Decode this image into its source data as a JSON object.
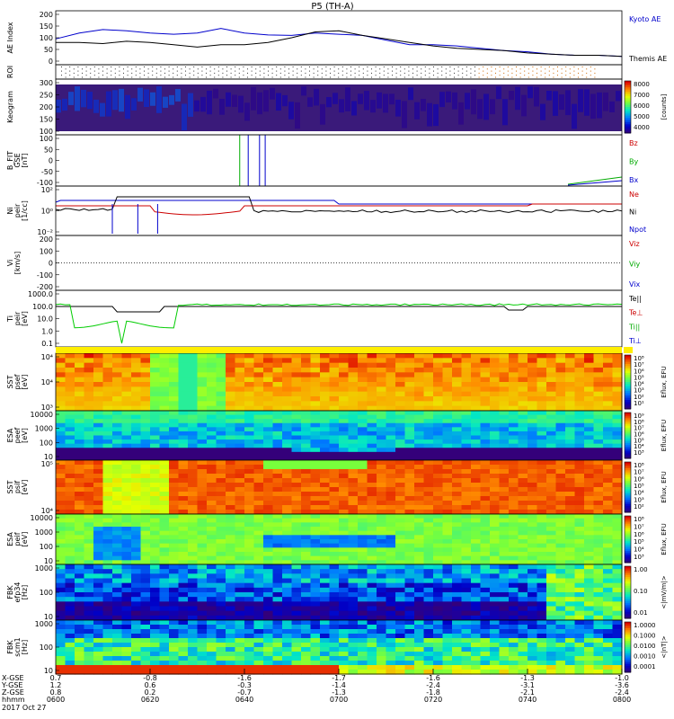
{
  "title": "P5 (TH-A)",
  "date": "2017 Oct 27",
  "chart_data": [
    {
      "id": "ae",
      "type": "line",
      "ylabel": "AE Index",
      "yticks": [
        "200",
        "150",
        "100",
        "50",
        "0"
      ],
      "legend": [
        {
          "name": "Kyoto AE",
          "color": "#0000cc"
        },
        {
          "name": "Themis AE",
          "color": "#000000"
        }
      ],
      "series": [
        {
          "name": "Kyoto AE",
          "color": "#0000cc",
          "t": [
            0,
            5,
            10,
            15,
            20,
            25,
            30,
            35,
            40,
            45,
            50,
            55,
            60,
            65,
            70,
            75,
            80,
            85,
            90,
            95,
            100,
            105,
            110,
            115,
            120
          ],
          "v": [
            95,
            120,
            135,
            130,
            120,
            115,
            120,
            140,
            120,
            112,
            110,
            120,
            115,
            110,
            90,
            70,
            70,
            65,
            55,
            45,
            40,
            30,
            25,
            25,
            20
          ]
        },
        {
          "name": "Themis AE",
          "color": "#000000",
          "t": [
            0,
            5,
            10,
            15,
            20,
            25,
            30,
            35,
            40,
            45,
            50,
            55,
            60,
            65,
            70,
            75,
            80,
            85,
            90,
            95,
            100,
            105,
            110,
            115,
            120
          ],
          "v": [
            80,
            80,
            75,
            85,
            80,
            70,
            60,
            70,
            70,
            80,
            100,
            125,
            130,
            110,
            95,
            80,
            65,
            55,
            50,
            45,
            35,
            30,
            25,
            25,
            20
          ]
        }
      ]
    },
    {
      "id": "roi",
      "type": "scatter",
      "ylabel": "ROI"
    },
    {
      "id": "keogram",
      "type": "heatmap",
      "ylabel": "Keogram",
      "yticks": [
        "300",
        "250",
        "200",
        "150",
        "100"
      ],
      "cbar_ticks": [
        "8000",
        "7000",
        "6000",
        "5000",
        "4000"
      ],
      "cbar_label": "[counts]"
    },
    {
      "id": "bfit",
      "type": "line",
      "ylabel": "B_FIT",
      "yunit": "[nT]",
      "ylabel2": "GSE",
      "yticks": [
        "100",
        "50",
        "0",
        "-50",
        "-100"
      ],
      "legend": [
        {
          "name": "Bz",
          "color": "#cc0000"
        },
        {
          "name": "By",
          "color": "#00aa00"
        },
        {
          "name": "Bx",
          "color": "#0000cc"
        }
      ]
    },
    {
      "id": "ni",
      "type": "line",
      "ylabel": "Ni",
      "ylabel2": "peir",
      "yunit": "[1/cc]",
      "yticks": [
        "10²",
        "10⁰",
        "10⁻²"
      ],
      "legend": [
        {
          "name": "Ne",
          "color": "#cc0000"
        },
        {
          "name": "Ni",
          "color": "#000000"
        },
        {
          "name": "Npot",
          "color": "#0000cc"
        }
      ]
    },
    {
      "id": "vi",
      "type": "line",
      "ylabel": "Vi",
      "yunit": "[km/s]",
      "yticks": [
        "200",
        "100",
        "0",
        "-100",
        "-200"
      ],
      "legend": [
        {
          "name": "Viz",
          "color": "#cc0000"
        },
        {
          "name": "Viy",
          "color": "#00aa00"
        },
        {
          "name": "Vix",
          "color": "#0000cc"
        }
      ]
    },
    {
      "id": "ti",
      "type": "line",
      "ylabel": "Ti",
      "ylabel2": "peir",
      "yunit": "[eV]",
      "yticks": [
        "1000.0",
        "100.0",
        "10.0",
        "1.0",
        "0.1"
      ],
      "legend": [
        {
          "name": "Te||",
          "color": "#000000"
        },
        {
          "name": "Te⊥",
          "color": "#cc0000"
        },
        {
          "name": "Ti||",
          "color": "#00aa00"
        },
        {
          "name": "Ti⊥",
          "color": "#0000cc"
        }
      ]
    },
    {
      "id": "sst_e",
      "type": "heatmap",
      "ylabel": "SST",
      "ylabel2": "psef",
      "yunit": "[eV]",
      "yticks": [
        "10⁴",
        "10⁴",
        "10³"
      ],
      "cbar_ticks": [
        "10⁸",
        "10⁷",
        "10⁶",
        "10⁵",
        "10⁴",
        "10³",
        "10²",
        "10¹"
      ],
      "cbar_label": "Eflux, EFU"
    },
    {
      "id": "esa_e",
      "type": "heatmap",
      "ylabel": "ESA",
      "ylabel2": "peef",
      "yunit": "[eV]",
      "yticks": [
        "10000",
        "1000",
        "100",
        "10"
      ],
      "cbar_ticks": [
        "10⁹",
        "10⁸",
        "10⁷",
        "10⁶",
        "10⁵",
        "10⁴",
        "10³"
      ],
      "cbar_label": "Eflux, EFU"
    },
    {
      "id": "sst_i",
      "type": "heatmap",
      "ylabel": "SST",
      "ylabel2": "psif",
      "yunit": "[eV]",
      "yticks": [
        "10⁵",
        "10⁴"
      ],
      "cbar_ticks": [
        "10⁸",
        "10⁷",
        "10⁶",
        "10⁵",
        "10⁴",
        "10³",
        "10²"
      ],
      "cbar_label": "Eflux, EFU"
    },
    {
      "id": "esa_i",
      "type": "heatmap",
      "ylabel": "ESA",
      "ylabel2": "peif",
      "yunit": "[eV]",
      "yticks": [
        "10000",
        "1000",
        "100",
        "10"
      ],
      "cbar_ticks": [
        "10⁸",
        "10⁷",
        "10⁶",
        "10⁵",
        "10⁴",
        "10³"
      ],
      "cbar_label": "Eflux, EFU"
    },
    {
      "id": "fbk1",
      "type": "heatmap",
      "ylabel": "FBK",
      "ylabel2": "efp34",
      "yunit": "[Hz]",
      "yticks": [
        "1000",
        "100",
        "10"
      ],
      "cbar_ticks": [
        "1.00",
        "0.10",
        "0.01"
      ],
      "cbar_label": "<|mV/m|>"
    },
    {
      "id": "fbk2",
      "type": "heatmap",
      "ylabel": "FBK",
      "ylabel2": "scm1",
      "yunit": "[Hz]",
      "yticks": [
        "1000",
        "100",
        "10"
      ],
      "cbar_ticks": [
        "1.0000",
        "0.1000",
        "0.0100",
        "0.0010",
        "0.0001"
      ],
      "cbar_label": "<|nT|>"
    }
  ],
  "axis": {
    "row_labels": [
      "X-GSE",
      "Y-GSE",
      "Z-GSE",
      "hhmm",
      "2017 Oct 27"
    ],
    "ticks": [
      {
        "x": "0.7",
        "y": "1.2",
        "z": "0.8",
        "t": "0600"
      },
      {
        "x": "-0.8",
        "y": "0.6",
        "z": "0.2",
        "t": "0620"
      },
      {
        "x": "-1.6",
        "y": "-0.3",
        "z": "-0.7",
        "t": "0640"
      },
      {
        "x": "-1.7",
        "y": "-1.4",
        "z": "-1.3",
        "t": "0700"
      },
      {
        "x": "-1.6",
        "y": "-2.4",
        "z": "-1.8",
        "t": "0720"
      },
      {
        "x": "-1.3",
        "y": "-3.1",
        "z": "-2.1",
        "t": "0740"
      },
      {
        "x": "-1.0",
        "y": "-3.6",
        "z": "-2.4",
        "t": "0800"
      }
    ]
  }
}
